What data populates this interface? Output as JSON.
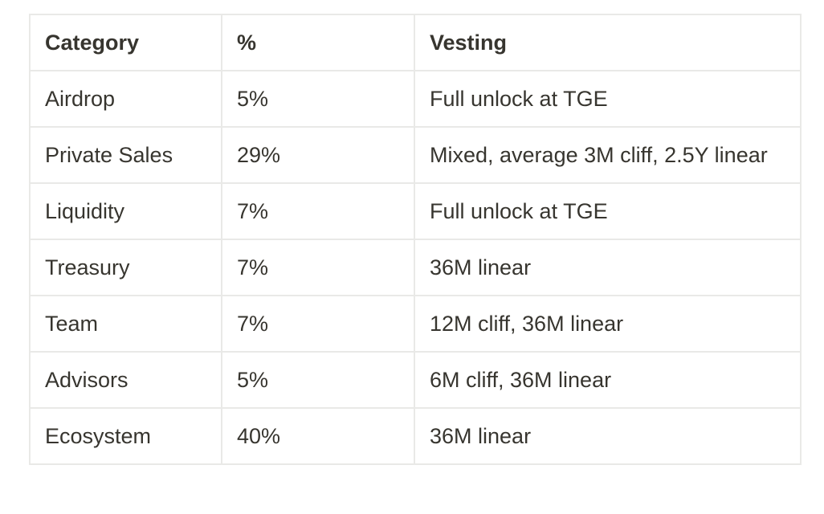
{
  "table": {
    "name": "token-vesting-table",
    "columns": [
      {
        "key": "category",
        "label": "Category"
      },
      {
        "key": "percent",
        "label": "%"
      },
      {
        "key": "vesting",
        "label": "Vesting"
      }
    ],
    "rows": [
      {
        "category": "Airdrop",
        "percent": "5%",
        "vesting": "Full unlock at TGE"
      },
      {
        "category": "Private Sales",
        "percent": "29%",
        "vesting": "Mixed, average 3M cliff, 2.5Y linear"
      },
      {
        "category": "Liquidity",
        "percent": "7%",
        "vesting": "Full unlock at TGE"
      },
      {
        "category": "Treasury",
        "percent": "7%",
        "vesting": "36M linear"
      },
      {
        "category": "Team",
        "percent": "7%",
        "vesting": "12M cliff, 36M linear"
      },
      {
        "category": "Advisors",
        "percent": "5%",
        "vesting": "6M cliff, 36M linear"
      },
      {
        "category": "Ecosystem",
        "percent": "40%",
        "vesting": "36M linear"
      }
    ],
    "colors": {
      "text": "#37352f",
      "border": "#e9e9e7",
      "background": "#ffffff"
    }
  }
}
